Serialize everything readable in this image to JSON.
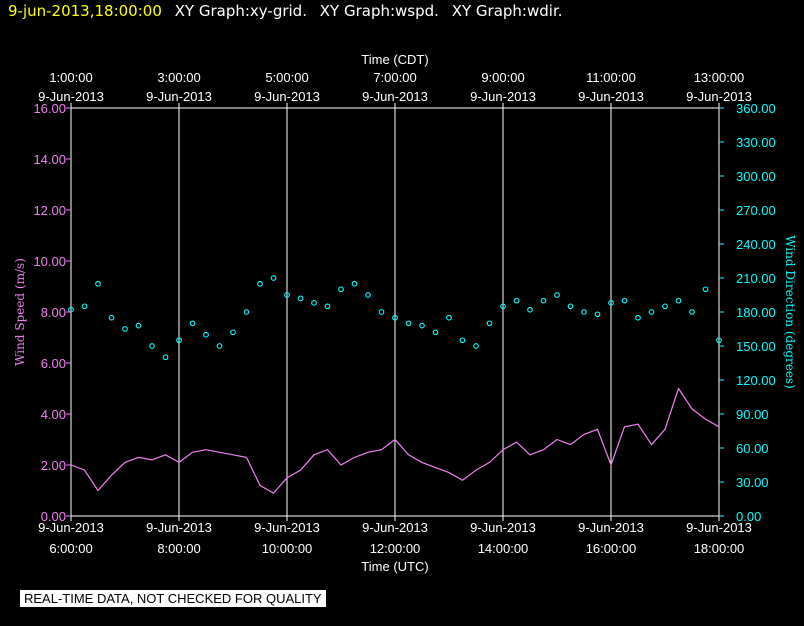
{
  "header": {
    "timestamp": "9-jun-2013,18:00:00",
    "graph_labels": [
      "XY Graph:xy-grid.",
      "XY Graph:wspd.",
      "XY Graph:wdir."
    ]
  },
  "disclaimer": "REAL-TIME DATA, NOT CHECKED FOR QUALITY",
  "colors": {
    "wspd": "#ee82ee",
    "wdir": "#00ffff",
    "axes": "#ffffff",
    "grid": "#ffffff",
    "background": "#000000"
  },
  "chart_data": {
    "type": "line",
    "top_axis": {
      "title": "Time (CDT)",
      "ticks": [
        {
          "time": "1:00:00",
          "date": "9-Jun-2013"
        },
        {
          "time": "3:00:00",
          "date": "9-Jun-2013"
        },
        {
          "time": "5:00:00",
          "date": "9-Jun-2013"
        },
        {
          "time": "7:00:00",
          "date": "9-Jun-2013"
        },
        {
          "time": "9:00:00",
          "date": "9-Jun-2013"
        },
        {
          "time": "11:00:00",
          "date": "9-Jun-2013"
        },
        {
          "time": "13:00:00",
          "date": "9-Jun-2013"
        }
      ]
    },
    "bottom_axis": {
      "title": "Time (UTC)",
      "ticks": [
        {
          "date": "9-Jun-2013",
          "time": "6:00:00"
        },
        {
          "date": "9-Jun-2013",
          "time": "8:00:00"
        },
        {
          "date": "9-Jun-2013",
          "time": "10:00:00"
        },
        {
          "date": "9-Jun-2013",
          "time": "12:00:00"
        },
        {
          "date": "9-Jun-2013",
          "time": "14:00:00"
        },
        {
          "date": "9-Jun-2013",
          "time": "16:00:00"
        },
        {
          "date": "9-Jun-2013",
          "time": "18:00:00"
        }
      ],
      "range_hours_utc": [
        6,
        18
      ]
    },
    "left_axis": {
      "label": "Wind Speed (m/s)",
      "range": [
        0,
        16
      ],
      "ticks": [
        "0.00",
        "2.00",
        "4.00",
        "6.00",
        "8.00",
        "10.00",
        "12.00",
        "14.00",
        "16.00"
      ]
    },
    "right_axis": {
      "label": "Wind Direction (degrees)",
      "range": [
        0,
        360
      ],
      "ticks": [
        "0.00",
        "30.00",
        "60.00",
        "90.00",
        "120.00",
        "150.00",
        "180.00",
        "210.00",
        "240.00",
        "270.00",
        "300.00",
        "330.00",
        "360.00"
      ]
    },
    "series": [
      {
        "name": "wspd",
        "style": "line",
        "x_hours_utc": [
          6.0,
          6.25,
          6.5,
          6.75,
          7.0,
          7.25,
          7.5,
          7.75,
          8.0,
          8.25,
          8.5,
          8.75,
          9.0,
          9.25,
          9.5,
          9.75,
          10.0,
          10.25,
          10.5,
          10.75,
          11.0,
          11.25,
          11.5,
          11.75,
          12.0,
          12.25,
          12.5,
          12.75,
          13.0,
          13.25,
          13.5,
          13.75,
          14.0,
          14.25,
          14.5,
          14.75,
          15.0,
          15.25,
          15.5,
          15.75,
          16.0,
          16.25,
          16.5,
          16.75,
          17.0,
          17.25,
          17.5,
          17.75,
          18.0
        ],
        "values": [
          2.0,
          1.8,
          1.0,
          1.6,
          2.1,
          2.3,
          2.2,
          2.4,
          2.1,
          2.5,
          2.6,
          2.5,
          2.4,
          2.3,
          1.2,
          0.9,
          1.5,
          1.8,
          2.4,
          2.6,
          2.0,
          2.3,
          2.5,
          2.6,
          3.0,
          2.4,
          2.1,
          1.9,
          1.7,
          1.4,
          1.8,
          2.1,
          2.6,
          2.9,
          2.4,
          2.6,
          3.0,
          2.8,
          3.2,
          3.4,
          2.0,
          3.5,
          3.6,
          2.8,
          3.4,
          5.0,
          4.2,
          3.8,
          3.5
        ]
      },
      {
        "name": "wdir",
        "style": "markers",
        "x_hours_utc": [
          6.0,
          6.25,
          6.5,
          6.75,
          7.0,
          7.25,
          7.5,
          7.75,
          8.0,
          8.25,
          8.5,
          8.75,
          9.0,
          9.25,
          9.5,
          9.75,
          10.0,
          10.25,
          10.5,
          10.75,
          11.0,
          11.25,
          11.5,
          11.75,
          12.0,
          12.25,
          12.5,
          12.75,
          13.0,
          13.25,
          13.5,
          13.75,
          14.0,
          14.25,
          14.5,
          14.75,
          15.0,
          15.25,
          15.5,
          15.75,
          16.0,
          16.25,
          16.5,
          16.75,
          17.0,
          17.25,
          17.5,
          17.75,
          18.0
        ],
        "values": [
          182,
          185,
          205,
          175,
          165,
          168,
          150,
          140,
          155,
          170,
          160,
          150,
          162,
          180,
          205,
          210,
          195,
          192,
          188,
          185,
          200,
          205,
          195,
          180,
          175,
          170,
          168,
          162,
          175,
          155,
          150,
          170,
          185,
          190,
          182,
          190,
          195,
          185,
          180,
          178,
          188,
          190,
          175,
          180,
          185,
          190,
          180,
          200,
          155
        ]
      }
    ]
  }
}
